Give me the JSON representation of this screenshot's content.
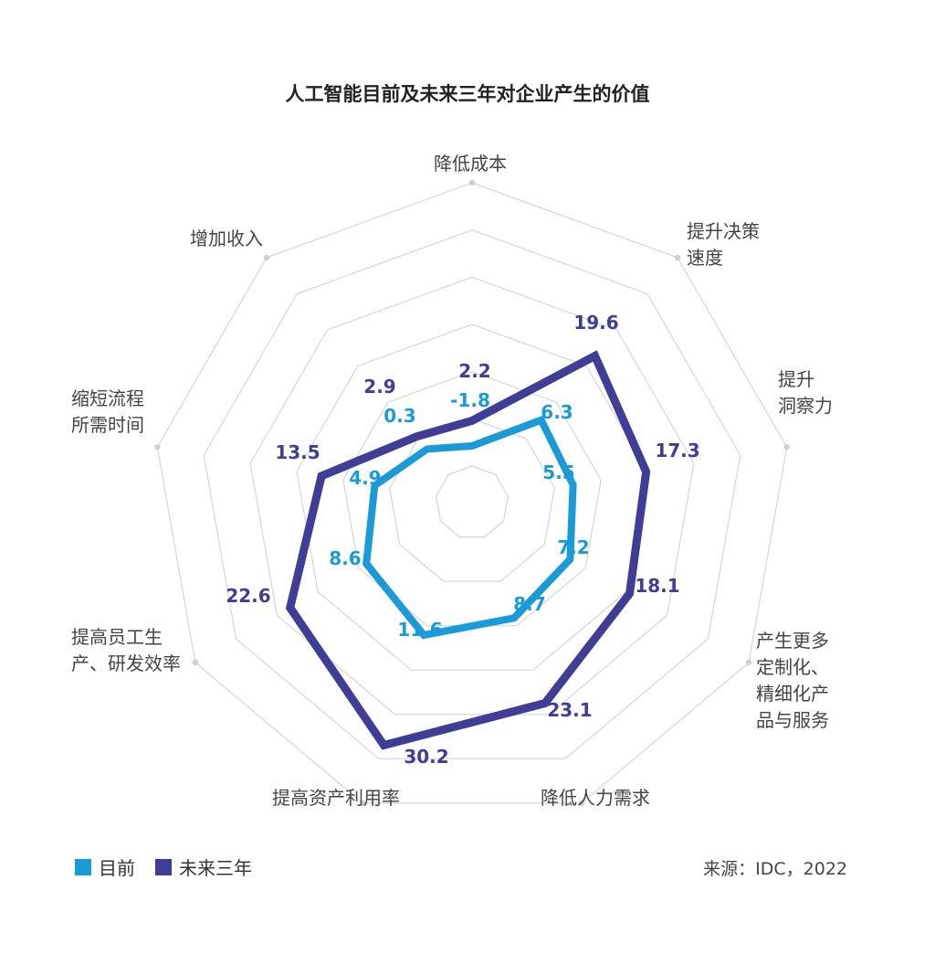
{
  "colors": {
    "now": "#1a9ad6",
    "future": "#3f3d96",
    "grid": "#d6d6d6"
  },
  "legend": {
    "now_label": "目前",
    "future_label": "未来三年"
  },
  "source": "来源：IDC，2022",
  "chart_data": {
    "type": "radar",
    "title": "人工智能目前及未来三年对企业产生的价值",
    "axes": [
      {
        "label_lines": [
          "降低成本"
        ]
      },
      {
        "label_lines": [
          "提升决策",
          "速度"
        ]
      },
      {
        "label_lines": [
          "提升",
          "洞察力"
        ]
      },
      {
        "label_lines": [
          "产生更多",
          "定制化、",
          "精细化产",
          "品与服务"
        ]
      },
      {
        "label_lines": [
          "降低人力需求"
        ]
      },
      {
        "label_lines": [
          "提高资产利用率"
        ]
      },
      {
        "label_lines": [
          "提高员工生",
          "产、研发效率"
        ]
      },
      {
        "label_lines": [
          "缩短流程",
          "所需时间"
        ]
      },
      {
        "label_lines": [
          "增加收入"
        ]
      }
    ],
    "series": [
      {
        "name": "目前",
        "values": [
          -1.8,
          6.3,
          5.5,
          7.2,
          8.7,
          11.6,
          8.6,
          4.9,
          0.3
        ],
        "labels": [
          "-1.8",
          "6.3",
          "5.5",
          "7.2",
          "8.7",
          "11.6",
          "8.6",
          "4.9",
          "0.3"
        ]
      },
      {
        "name": "未来三年",
        "values": [
          2.2,
          19.6,
          17.3,
          18.1,
          23.1,
          30.2,
          22.6,
          13.5,
          2.9
        ],
        "labels": [
          "2.2",
          "19.6",
          "17.3",
          "18.1",
          "23.1",
          "30.2",
          "22.6",
          "13.5",
          "2.9"
        ]
      }
    ],
    "grid_rings": 6,
    "legend_position": "bottom-left"
  }
}
